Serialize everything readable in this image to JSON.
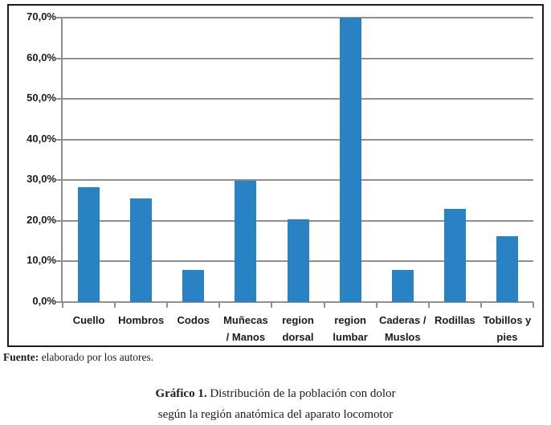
{
  "chart_data": {
    "type": "bar",
    "title": "",
    "xlabel": "",
    "ylabel": "",
    "categories": [
      "Cuello",
      "Hombros",
      "Codos",
      "Muñecas / Manos",
      "region dorsal",
      "region lumbar",
      "Caderas / Muslos",
      "Rodillas",
      "Tobillos y pies"
    ],
    "category_lines": [
      [
        "Cuello"
      ],
      [
        "Hombros"
      ],
      [
        "Codos"
      ],
      [
        "Muñecas",
        "/ Manos"
      ],
      [
        "region",
        "dorsal"
      ],
      [
        "region",
        "lumbar"
      ],
      [
        "Caderas /",
        "Muslos"
      ],
      [
        "Rodillas"
      ],
      [
        "Tobillos y",
        "pies"
      ]
    ],
    "values": [
      28.3,
      25.5,
      8.0,
      29.8,
      20.3,
      70.0,
      8.0,
      22.9,
      16.2
    ],
    "ylim": [
      0,
      70
    ],
    "y_tick_step": 10,
    "y_tick_labels": [
      "70,0%",
      "60,0%",
      "50,0%",
      "40,0%",
      "30,0%",
      "20,0%",
      "10,0%",
      "0,0%"
    ],
    "grid": true,
    "legend": false,
    "bar_color": "#2982c4",
    "gridline_color": "#8f8f8f",
    "frame_border_color": "#1c1c1c"
  },
  "source_note": {
    "label": "Fuente:",
    "text": " elaborado por los autores."
  },
  "caption": {
    "label": "Gráfico 1.",
    "line1_rest": " Distribución de la población con dolor",
    "line2": "según la región anatómica del aparato locomotor"
  }
}
